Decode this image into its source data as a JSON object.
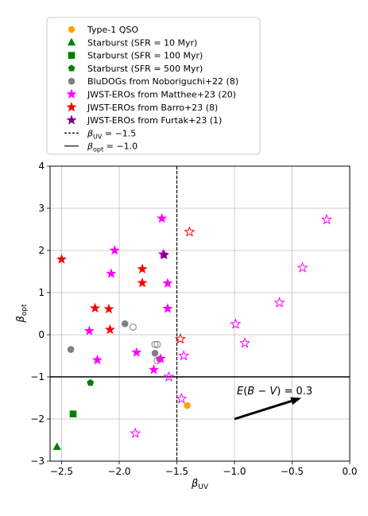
{
  "chart_data": {
    "type": "scatter",
    "xlabel": "β_UV",
    "ylabel": "β_opt",
    "xlim": [
      -2.6,
      0.0
    ],
    "ylim": [
      -3,
      4
    ],
    "xticks": [
      "−2.5",
      "−2.0",
      "−1.5",
      "−1.0",
      "−0.5",
      "0.0"
    ],
    "xtick_values": [
      -2.5,
      -2.0,
      -1.5,
      -1.0,
      -0.5,
      0.0
    ],
    "yticks": [
      "−3",
      "−2",
      "−1",
      "0",
      "1",
      "2",
      "3",
      "4"
    ],
    "ytick_values": [
      -3,
      -2,
      -1,
      0,
      1,
      2,
      3,
      4
    ],
    "grid": true,
    "legend_position": "above plot",
    "legend": [
      {
        "label": "Type-1 QSO",
        "marker": "circle",
        "color": "#ffa500",
        "filled": true
      },
      {
        "label": "Starburst (SFR = 10 Myr)",
        "marker": "triangle",
        "color": "#008000",
        "filled": true
      },
      {
        "label": "Starburst (SFR = 100 Myr)",
        "marker": "square",
        "color": "#008000",
        "filled": true
      },
      {
        "label": "Starburst (SFR = 500 Myr)",
        "marker": "pentagon",
        "color": "#008000",
        "filled": true
      },
      {
        "label": "BluDOGs from Noboriguchi+22 (8)",
        "marker": "circle",
        "color": "#808080",
        "filled": true
      },
      {
        "label": "JWST-EROs from Matthee+23 (20)",
        "marker": "star",
        "color": "#ff00ff",
        "filled": true
      },
      {
        "label": "JWST-EROs from Barro+23 (8)",
        "marker": "star",
        "color": "#ff0000",
        "filled": true
      },
      {
        "label": "JWST-EROs from Furtak+23 (1)",
        "marker": "star",
        "color": "#800080",
        "filled": true
      },
      {
        "label": "β_UV = −1.5",
        "marker": "dashed-line",
        "color": "#000000"
      },
      {
        "label": "β_opt = −1.0",
        "marker": "solid-line",
        "color": "#000000"
      }
    ],
    "reference_lines": [
      {
        "orientation": "vertical",
        "value": -1.5,
        "style": "dashed"
      },
      {
        "orientation": "horizontal",
        "value": -1.0,
        "style": "solid"
      }
    ],
    "annotation": {
      "text": "E(B − V) = 0.3",
      "arrow_from": [
        -1.0,
        -2.0
      ],
      "arrow_to": [
        -0.42,
        -1.5
      ]
    },
    "series": [
      {
        "name": "Type-1 QSO",
        "marker": "circle",
        "color": "#ffa500",
        "filled": true,
        "points": [
          [
            -1.41,
            -1.68
          ]
        ]
      },
      {
        "name": "Starburst (SFR = 10 Myr)",
        "marker": "triangle",
        "color": "#008000",
        "filled": true,
        "points": [
          [
            -2.54,
            -2.66
          ]
        ]
      },
      {
        "name": "Starburst (SFR = 100 Myr)",
        "marker": "square",
        "color": "#008000",
        "filled": true,
        "points": [
          [
            -2.4,
            -1.88
          ]
        ]
      },
      {
        "name": "Starburst (SFR = 500 Myr)",
        "marker": "pentagon",
        "color": "#008000",
        "filled": true,
        "points": [
          [
            -2.25,
            -1.14
          ]
        ]
      },
      {
        "name": "BluDOGs from Noboriguchi+22 (8)",
        "marker": "circle",
        "color": "#808080",
        "filled": true,
        "points": [
          [
            -2.42,
            -0.35
          ],
          [
            -1.95,
            0.26
          ],
          [
            -1.69,
            -0.44
          ],
          [
            -1.65,
            -0.58
          ]
        ]
      },
      {
        "name": "BluDOGs from Noboriguchi+22 (8) open",
        "marker": "circle",
        "color": "#808080",
        "filled": false,
        "points": [
          [
            -1.88,
            0.18
          ],
          [
            -1.69,
            -0.23
          ],
          [
            -1.67,
            -0.23
          ],
          [
            -1.67,
            -0.62
          ]
        ]
      },
      {
        "name": "JWST-EROs from Matthee+23 (20)",
        "marker": "star",
        "color": "#ff00ff",
        "filled": true,
        "points": [
          [
            -1.63,
            2.76
          ],
          [
            -2.04,
            2.0
          ],
          [
            -1.62,
            1.91
          ],
          [
            -2.07,
            1.45
          ],
          [
            -1.58,
            1.22
          ],
          [
            -1.58,
            0.62
          ],
          [
            -2.26,
            0.09
          ],
          [
            -1.85,
            -0.42
          ],
          [
            -2.19,
            -0.6
          ],
          [
            -1.64,
            -0.57
          ],
          [
            -1.7,
            -0.83
          ]
        ]
      },
      {
        "name": "JWST-EROs from Matthee+23 (20) open",
        "marker": "star",
        "color": "#ff00ff",
        "filled": false,
        "points": [
          [
            -0.2,
            2.73
          ],
          [
            -0.41,
            1.59
          ],
          [
            -0.61,
            0.76
          ],
          [
            -0.99,
            0.25
          ],
          [
            -0.91,
            -0.2
          ],
          [
            -1.44,
            -0.5
          ],
          [
            -1.57,
            -1.0
          ],
          [
            -1.46,
            -1.52
          ],
          [
            -1.86,
            -2.34
          ]
        ]
      },
      {
        "name": "JWST-EROs from Barro+23 (8)",
        "marker": "star",
        "color": "#ff0000",
        "filled": true,
        "points": [
          [
            -2.5,
            1.79
          ],
          [
            -1.8,
            1.56
          ],
          [
            -1.8,
            1.23
          ],
          [
            -2.21,
            0.63
          ],
          [
            -2.09,
            0.61
          ],
          [
            -2.08,
            0.12
          ]
        ]
      },
      {
        "name": "JWST-EROs from Barro+23 (8) open",
        "marker": "star",
        "color": "#ff0000",
        "filled": false,
        "points": [
          [
            -1.39,
            2.44
          ],
          [
            -1.47,
            -0.1
          ]
        ]
      },
      {
        "name": "JWST-EROs from Furtak+23 (1)",
        "marker": "star",
        "color": "#800080",
        "filled": true,
        "points": [
          [
            -1.61,
            1.89
          ]
        ]
      }
    ]
  }
}
